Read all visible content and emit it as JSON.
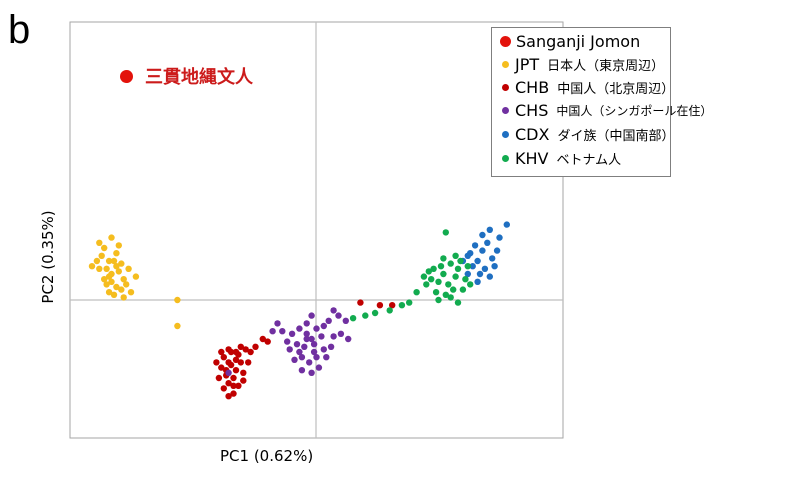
{
  "panel_label": "b",
  "annotation": {
    "text": "三貫地縄文人",
    "color": "#e3120b"
  },
  "legend": {
    "items": [
      {
        "code": "Sanganji Jomon",
        "desc": "",
        "color": "#e3120b",
        "big": true
      },
      {
        "code": "JPT",
        "desc": "日本人（東京周辺）",
        "color": "#f5bd1f"
      },
      {
        "code": "CHB",
        "desc": "中国人（北京周辺）",
        "color": "#c00000"
      },
      {
        "code": "CHS",
        "desc": "中国人（シンガポール在住）",
        "color": "#7030a0"
      },
      {
        "code": "CDX",
        "desc": "ダイ族（中国南部）",
        "color": "#1f6fc1"
      },
      {
        "code": "KHV",
        "desc": "ベトナム人",
        "color": "#12ab4f"
      }
    ]
  },
  "chart_data": {
    "type": "scatter",
    "xlabel": "PC1 (0.62%)",
    "ylabel": "PC2 (0.35%)",
    "xlim": [
      -1,
      1
    ],
    "ylim": [
      -1,
      1
    ],
    "grid": "zero-lines only",
    "legend_position": "outside-right",
    "series": [
      {
        "name": "Sanganji Jomon",
        "color": "#e3120b",
        "points": []
      },
      {
        "name": "JPT",
        "color": "#f5bd1f",
        "points": [
          [
            -0.87,
            0.2
          ],
          [
            -0.85,
            0.15
          ],
          [
            -0.89,
            0.12
          ],
          [
            -0.82,
            0.18
          ],
          [
            -0.84,
            0.1
          ],
          [
            -0.8,
            0.14
          ],
          [
            -0.86,
            0.06
          ],
          [
            -0.83,
            0.02
          ],
          [
            -0.79,
            0.08
          ],
          [
            -0.88,
            0.17
          ],
          [
            -0.81,
            0.11
          ],
          [
            -0.85,
            0.09
          ],
          [
            -0.77,
            0.12
          ],
          [
            -0.84,
            0.24
          ],
          [
            -0.9,
            0.15
          ],
          [
            -0.86,
            0.12
          ],
          [
            -0.82,
            0.05
          ],
          [
            -0.8,
            0.04
          ],
          [
            -0.78,
            0.06
          ],
          [
            -0.74,
            0.09
          ],
          [
            -0.87,
            0.08
          ],
          [
            -0.83,
            0.15
          ],
          [
            -0.81,
            0.21
          ],
          [
            -0.92,
            0.13
          ],
          [
            -0.79,
            0.01
          ],
          [
            -0.85,
            0.03
          ],
          [
            -0.76,
            0.03
          ],
          [
            -0.89,
            0.22
          ],
          [
            -0.82,
            0.13
          ],
          [
            -0.84,
            0.07
          ],
          [
            -0.57,
            0.0
          ],
          [
            -0.57,
            -0.1
          ]
        ]
      },
      {
        "name": "CHB",
        "color": "#c00000",
        "points": [
          [
            -0.36,
            -0.19
          ],
          [
            -0.33,
            -0.2
          ],
          [
            -0.38,
            -0.22
          ],
          [
            -0.35,
            -0.25
          ],
          [
            -0.39,
            -0.26
          ],
          [
            -0.33,
            -0.27
          ],
          [
            -0.37,
            -0.29
          ],
          [
            -0.34,
            -0.3
          ],
          [
            -0.31,
            -0.24
          ],
          [
            -0.29,
            -0.19
          ],
          [
            -0.3,
            -0.28
          ],
          [
            -0.4,
            -0.3
          ],
          [
            -0.36,
            -0.32
          ],
          [
            -0.32,
            -0.33
          ],
          [
            -0.38,
            -0.34
          ],
          [
            -0.34,
            -0.36
          ],
          [
            -0.36,
            -0.24
          ],
          [
            -0.31,
            -0.18
          ],
          [
            -0.28,
            -0.24
          ],
          [
            -0.27,
            -0.2
          ],
          [
            -0.35,
            -0.2
          ],
          [
            -0.39,
            -0.2
          ],
          [
            -0.33,
            -0.23
          ],
          [
            -0.37,
            -0.27
          ],
          [
            -0.3,
            -0.31
          ],
          [
            -0.34,
            -0.33
          ],
          [
            -0.32,
            -0.21
          ],
          [
            -0.25,
            -0.18
          ],
          [
            -0.22,
            -0.15
          ],
          [
            -0.2,
            -0.16
          ],
          [
            -0.36,
            -0.37
          ],
          [
            -0.41,
            -0.24
          ],
          [
            0.18,
            -0.01
          ],
          [
            0.26,
            -0.02
          ],
          [
            0.31,
            -0.02
          ]
        ]
      },
      {
        "name": "CHS",
        "color": "#7030a0",
        "points": [
          [
            -0.07,
            -0.11
          ],
          [
            -0.04,
            -0.13
          ],
          [
            -0.02,
            -0.15
          ],
          [
            -0.05,
            -0.18
          ],
          [
            -0.08,
            -0.17
          ],
          [
            0.0,
            -0.11
          ],
          [
            0.02,
            -0.14
          ],
          [
            0.03,
            -0.19
          ],
          [
            -0.01,
            -0.2
          ],
          [
            -0.06,
            -0.22
          ],
          [
            -0.03,
            -0.24
          ],
          [
            0.01,
            -0.26
          ],
          [
            -0.1,
            -0.13
          ],
          [
            -0.11,
            -0.19
          ],
          [
            -0.09,
            -0.23
          ],
          [
            -0.04,
            -0.09
          ],
          [
            0.05,
            -0.08
          ],
          [
            0.07,
            -0.14
          ],
          [
            0.04,
            -0.22
          ],
          [
            -0.12,
            -0.16
          ],
          [
            -0.02,
            -0.06
          ],
          [
            0.09,
            -0.06
          ],
          [
            0.12,
            -0.08
          ],
          [
            0.1,
            -0.13
          ],
          [
            -0.06,
            -0.27
          ],
          [
            0.06,
            -0.18
          ],
          [
            -0.01,
            -0.17
          ],
          [
            -0.04,
            -0.15
          ],
          [
            -0.07,
            -0.2
          ],
          [
            -0.14,
            -0.12
          ],
          [
            -0.16,
            -0.09
          ],
          [
            0.0,
            -0.22
          ],
          [
            0.03,
            -0.1
          ],
          [
            0.07,
            -0.04
          ],
          [
            0.13,
            -0.15
          ],
          [
            -0.36,
            -0.28
          ],
          [
            -0.18,
            -0.12
          ],
          [
            -0.02,
            -0.28
          ]
        ]
      },
      {
        "name": "CDX",
        "color": "#1f6fc1",
        "points": [
          [
            0.63,
            0.18
          ],
          [
            0.66,
            0.15
          ],
          [
            0.68,
            0.19
          ],
          [
            0.7,
            0.22
          ],
          [
            0.72,
            0.16
          ],
          [
            0.65,
            0.21
          ],
          [
            0.69,
            0.12
          ],
          [
            0.74,
            0.19
          ],
          [
            0.64,
            0.13
          ],
          [
            0.67,
            0.1
          ],
          [
            0.71,
            0.09
          ],
          [
            0.62,
            0.17
          ],
          [
            0.75,
            0.24
          ],
          [
            0.78,
            0.29
          ],
          [
            0.71,
            0.27
          ],
          [
            0.68,
            0.25
          ],
          [
            0.6,
            0.15
          ],
          [
            0.73,
            0.13
          ],
          [
            0.66,
            0.07
          ],
          [
            0.62,
            0.1
          ]
        ]
      },
      {
        "name": "KHV",
        "color": "#12ab4f",
        "points": [
          [
            0.48,
            0.12
          ],
          [
            0.52,
            0.1
          ],
          [
            0.55,
            0.14
          ],
          [
            0.57,
            0.09
          ],
          [
            0.5,
            0.07
          ],
          [
            0.54,
            0.06
          ],
          [
            0.58,
            0.12
          ],
          [
            0.61,
            0.08
          ],
          [
            0.47,
            0.08
          ],
          [
            0.51,
            0.13
          ],
          [
            0.56,
            0.04
          ],
          [
            0.6,
            0.04
          ],
          [
            0.53,
            0.02
          ],
          [
            0.49,
            0.03
          ],
          [
            0.45,
            0.06
          ],
          [
            0.59,
            0.15
          ],
          [
            0.62,
            0.13
          ],
          [
            0.55,
            0.01
          ],
          [
            0.63,
            0.06
          ],
          [
            0.52,
            0.16
          ],
          [
            0.57,
            0.17
          ],
          [
            0.46,
            0.11
          ],
          [
            0.5,
            0.0
          ],
          [
            0.58,
            -0.01
          ],
          [
            0.53,
            0.26
          ],
          [
            0.44,
            0.09
          ],
          [
            0.41,
            0.03
          ],
          [
            0.38,
            -0.01
          ],
          [
            0.35,
            -0.02
          ],
          [
            0.3,
            -0.04
          ],
          [
            0.24,
            -0.05
          ],
          [
            0.2,
            -0.06
          ],
          [
            0.15,
            -0.07
          ]
        ]
      }
    ]
  }
}
